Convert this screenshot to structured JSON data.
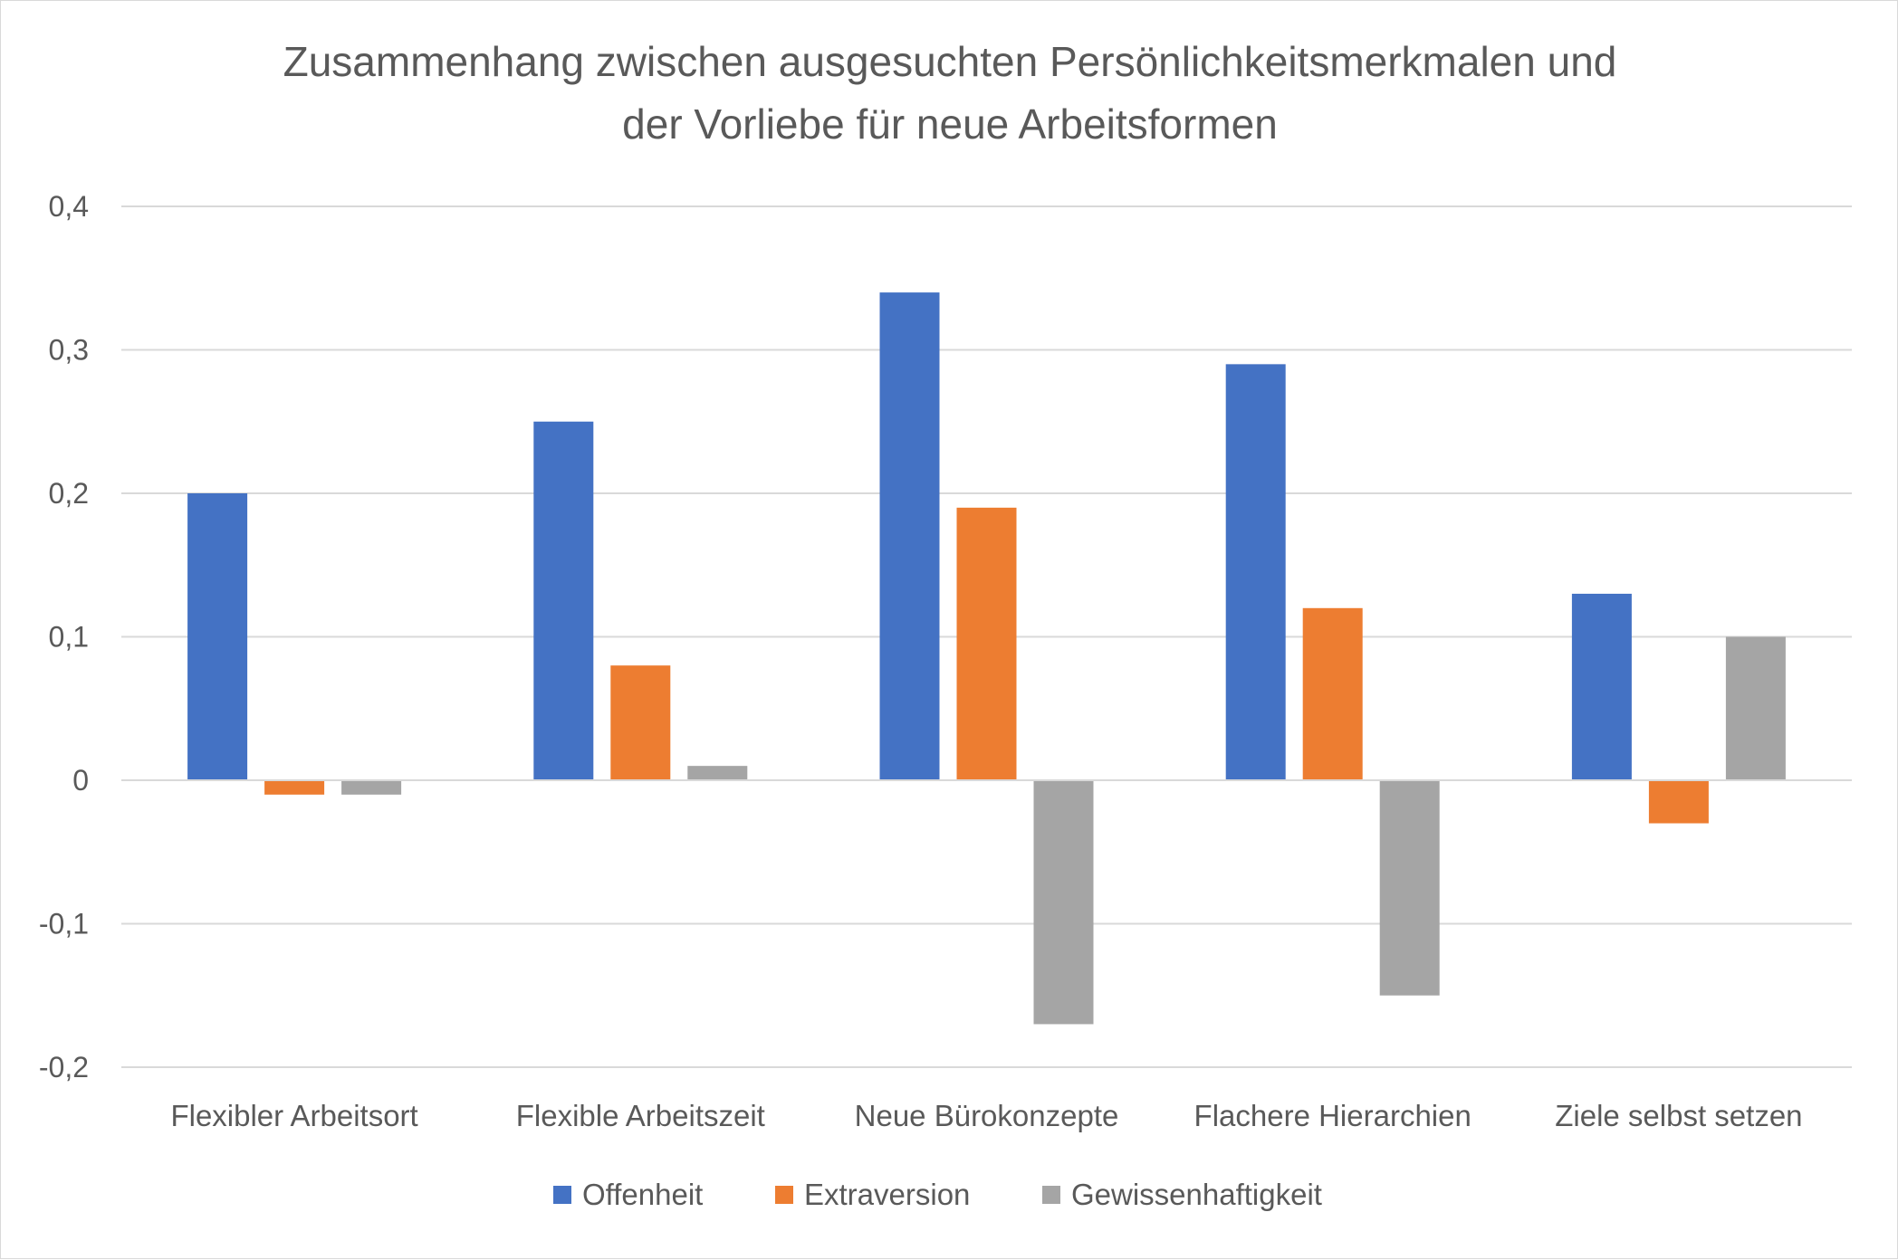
{
  "chart_data": {
    "type": "bar",
    "title_lines": [
      "Zusammenhang zwischen ausgesuchten Persönlichkeitsmerkmalen und",
      "der Vorliebe für neue Arbeitsformen"
    ],
    "xlabel": "",
    "ylabel": "",
    "categories": [
      "Flexibler Arbeitsort",
      "Flexible Arbeitszeit",
      "Neue Bürokonzepte",
      "Flachere Hierarchien",
      "Ziele selbst setzen"
    ],
    "series": [
      {
        "name": "Offenheit",
        "color": "#4472c4",
        "values": [
          0.2,
          0.25,
          0.34,
          0.29,
          0.13
        ]
      },
      {
        "name": "Extraversion",
        "color": "#ed7d31",
        "values": [
          -0.01,
          0.08,
          0.19,
          0.12,
          -0.03
        ]
      },
      {
        "name": "Gewissenhaftigkeit",
        "color": "#a5a5a5",
        "values": [
          -0.01,
          0.01,
          -0.17,
          -0.15,
          0.1
        ]
      }
    ],
    "ylim": [
      -0.2,
      0.4
    ],
    "yticks": [
      0.4,
      0.3,
      0.2,
      0.1,
      0,
      -0.1,
      -0.2
    ],
    "ytick_labels": [
      "0,4",
      "0,3",
      "0,2",
      "0,1",
      "0",
      "-0,1",
      "-0,2"
    ],
    "grid": true,
    "legend_position": "bottom",
    "gridline_color": "#d9d9d9",
    "text_color": "#595959"
  }
}
